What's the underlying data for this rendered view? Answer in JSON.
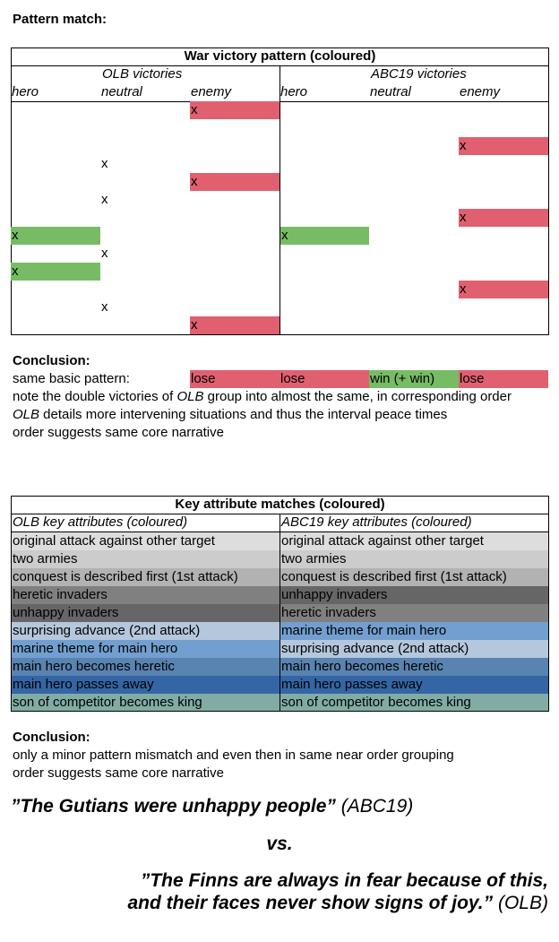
{
  "heading": "Pattern match:",
  "war_table": {
    "title": "War victory pattern (coloured)",
    "groups": [
      "OLB victories",
      "ABC19 victories"
    ],
    "columns": [
      "hero",
      "neutral",
      "enemy",
      "hero",
      "neutral",
      "enemy"
    ],
    "mark": "x",
    "colors": {
      "hero": "#77bc65",
      "enemy": "#e06070",
      "neutral": "#ffffff"
    },
    "rows": [
      [
        2
      ],
      [],
      [
        5
      ],
      [
        1
      ],
      [
        2
      ],
      [
        1
      ],
      [
        5
      ],
      [
        0,
        3
      ],
      [
        1
      ],
      [
        0
      ],
      [
        5
      ],
      [
        1
      ],
      [
        2
      ]
    ]
  },
  "conclusion1": {
    "title": "Conclusion:",
    "pattern_label": "same basic pattern:",
    "pattern_cells": [
      {
        "text": "lose",
        "color": "#e06070"
      },
      {
        "text": "lose",
        "color": "#e06070"
      },
      {
        "text": "win (+ win)",
        "color": "#77bc65"
      },
      {
        "text": "lose",
        "color": "#e06070"
      }
    ],
    "lines": [
      [
        {
          "text": "note the double victories of ",
          "italic": false
        },
        {
          "text": "OLB",
          "italic": true
        },
        {
          "text": " group into almost the same, in corresponding order",
          "italic": false
        }
      ],
      [
        {
          "text": "OLB",
          "italic": true
        },
        {
          "text": " details more intervening situations and thus the interval peace times",
          "italic": false
        }
      ],
      [
        {
          "text": "order suggests same core narrative",
          "italic": false
        }
      ]
    ]
  },
  "attr_table": {
    "title": "Key attribute matches (coloured)",
    "headers": [
      "OLB key attributes (coloured)",
      "ABC19 key attributes (coloured)"
    ],
    "rows": [
      [
        {
          "text": "original attack against other target",
          "color": "#dddddd"
        },
        {
          "text": "original attack against other target",
          "color": "#dddddd"
        }
      ],
      [
        {
          "text": "two armies",
          "color": "#cccccc"
        },
        {
          "text": "two armies",
          "color": "#cccccc"
        }
      ],
      [
        {
          "text": "conquest is described first (1st attack)",
          "color": "#b2b2b2"
        },
        {
          "text": "conquest is described first (1st attack)",
          "color": "#b2b2b2"
        }
      ],
      [
        {
          "text": "heretic invaders",
          "color": "#808080"
        },
        {
          "text": "unhappy invaders",
          "color": "#666666"
        }
      ],
      [
        {
          "text": "unhappy invaders",
          "color": "#666666"
        },
        {
          "text": "heretic invaders",
          "color": "#808080"
        }
      ],
      [
        {
          "text": "surprising advance (2nd attack)",
          "color": "#b4c7dc"
        },
        {
          "text": "marine theme for main hero",
          "color": "#729fcf"
        }
      ],
      [
        {
          "text": "marine theme for main hero",
          "color": "#729fcf"
        },
        {
          "text": "surprising advance (2nd attack)",
          "color": "#b4c7dc"
        }
      ],
      [
        {
          "text": "main hero becomes heretic",
          "color": "#5983b0"
        },
        {
          "text": "main hero becomes heretic",
          "color": "#5983b0"
        }
      ],
      [
        {
          "text": "main hero passes away",
          "color": "#3465a4"
        },
        {
          "text": "main hero passes away",
          "color": "#3465a4"
        }
      ],
      [
        {
          "text": "son of competitor becomes king",
          "color": "#81aca6"
        },
        {
          "text": "son of competitor becomes king",
          "color": "#81aca6"
        }
      ]
    ]
  },
  "conclusion2": {
    "title": "Conclusion:",
    "lines": [
      "only a minor pattern mismatch and even then in same near order grouping",
      "order suggests same core narrative"
    ]
  },
  "quotes": {
    "q1": "”The Gutians were unhappy people”",
    "q1_source": "(ABC19)",
    "vs": "vs.",
    "q2_line1": "”The Finns are always in fear because of this,",
    "q2_line2": "and their faces never show signs of joy.”",
    "q2_source": "(OLB)"
  }
}
